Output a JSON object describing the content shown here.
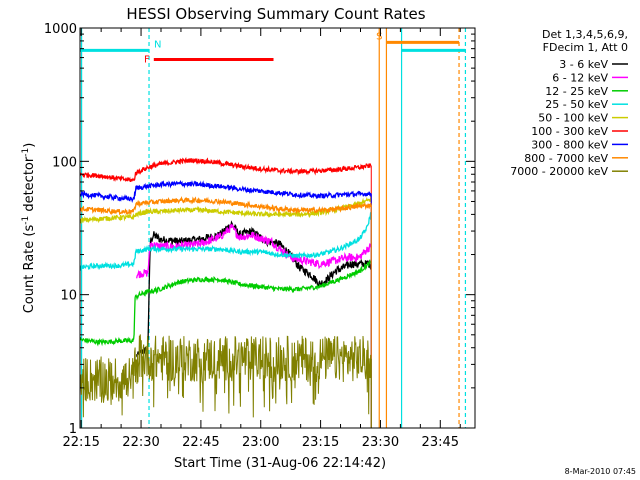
{
  "chart_data": {
    "type": "line",
    "title": "HESSI Observing Summary Count Rates",
    "xlabel": "Start Time (31-Aug-06 22:14:42)",
    "ylabel_main": "Count Rate (s",
    "ylabel_sup1": "-1",
    "ylabel_mid": " detector",
    "ylabel_sup2": "-1",
    "ylabel_end": ")",
    "x_unit": "minutes after 22:14:42",
    "xlim": [
      0,
      99
    ],
    "ylim": [
      1,
      1000
    ],
    "yscale": "log",
    "x_ticks": [
      {
        "t": 0.3,
        "label": "22:15"
      },
      {
        "t": 15.3,
        "label": "22:30"
      },
      {
        "t": 30.3,
        "label": "22:45"
      },
      {
        "t": 45.3,
        "label": "23:00"
      },
      {
        "t": 60.3,
        "label": "23:15"
      },
      {
        "t": 75.3,
        "label": "23:30"
      },
      {
        "t": 90.3,
        "label": "23:45"
      }
    ],
    "y_ticks": [
      {
        "v": 1,
        "label": "1"
      },
      {
        "v": 10,
        "label": "10"
      },
      {
        "v": 100,
        "label": "100"
      },
      {
        "v": 1000,
        "label": "1000"
      }
    ],
    "legend_header": [
      "Det 1,3,4,5,6,9,",
      "FDecim 1, Att 0"
    ],
    "legend_position": "right",
    "timestamp": "8-Mar-2010 07:45",
    "series": [
      {
        "name": "3 - 6 keV",
        "color": "#000000",
        "points": [
          [
            14.2,
            3.5
          ],
          [
            14.6,
            3.5
          ],
          [
            15.5,
            3.7
          ],
          [
            16.0,
            3.8
          ],
          [
            17.0,
            3.8
          ],
          [
            17.6,
            25
          ],
          [
            18.5,
            28
          ],
          [
            20,
            26
          ],
          [
            25,
            25
          ],
          [
            30,
            26
          ],
          [
            35,
            28
          ],
          [
            38,
            34
          ],
          [
            40,
            28
          ],
          [
            43,
            30
          ],
          [
            45,
            27
          ],
          [
            47,
            25
          ],
          [
            50,
            24
          ],
          [
            52,
            21
          ],
          [
            55,
            16
          ],
          [
            58,
            14
          ],
          [
            60,
            12
          ],
          [
            62,
            13
          ],
          [
            64,
            15
          ],
          [
            66,
            16
          ],
          [
            68,
            17
          ],
          [
            70,
            17
          ],
          [
            72,
            17
          ],
          [
            73,
            17
          ]
        ]
      },
      {
        "name": "6 - 12 keV",
        "color": "#ff00ff",
        "points": [
          [
            14.2,
            14
          ],
          [
            15.5,
            14.5
          ],
          [
            17.0,
            14.5
          ],
          [
            17.6,
            24
          ],
          [
            20,
            23
          ],
          [
            25,
            23
          ],
          [
            30,
            24
          ],
          [
            35,
            27
          ],
          [
            38,
            32
          ],
          [
            40,
            27
          ],
          [
            43,
            28
          ],
          [
            46,
            26
          ],
          [
            48,
            25
          ],
          [
            50,
            22
          ],
          [
            53,
            19
          ],
          [
            56,
            18
          ],
          [
            60,
            17
          ],
          [
            64,
            18
          ],
          [
            67,
            19
          ],
          [
            70,
            19
          ],
          [
            72,
            22
          ],
          [
            73,
            23
          ]
        ]
      },
      {
        "name": "12 - 25 keV",
        "color": "#00cc00",
        "points": [
          [
            0,
            4.6
          ],
          [
            5,
            4.4
          ],
          [
            10,
            4.5
          ],
          [
            13.5,
            4.5
          ],
          [
            13.8,
            9.5
          ],
          [
            15,
            10
          ],
          [
            17,
            10.5
          ],
          [
            20,
            11
          ],
          [
            25,
            12.5
          ],
          [
            30,
            13
          ],
          [
            35,
            13
          ],
          [
            40,
            12
          ],
          [
            45,
            11.5
          ],
          [
            50,
            11
          ],
          [
            55,
            11
          ],
          [
            60,
            11.5
          ],
          [
            65,
            13
          ],
          [
            70,
            15
          ],
          [
            73,
            17.5
          ]
        ]
      },
      {
        "name": "25 - 50 keV",
        "color": "#00e0e0",
        "points": [
          [
            0,
            16
          ],
          [
            5,
            16.5
          ],
          [
            10,
            16.5
          ],
          [
            13.5,
            17
          ],
          [
            14,
            21
          ],
          [
            17,
            22
          ],
          [
            20,
            22
          ],
          [
            25,
            22
          ],
          [
            30,
            22
          ],
          [
            35,
            22
          ],
          [
            40,
            21
          ],
          [
            45,
            21
          ],
          [
            50,
            20
          ],
          [
            55,
            19.5
          ],
          [
            60,
            20
          ],
          [
            65,
            22
          ],
          [
            70,
            26
          ],
          [
            72,
            32
          ],
          [
            73,
            42
          ]
        ]
      },
      {
        "name": "50 - 100 keV",
        "color": "#cccc00",
        "points": [
          [
            0,
            36
          ],
          [
            5,
            37
          ],
          [
            10,
            38
          ],
          [
            13.5,
            38
          ],
          [
            14,
            40
          ],
          [
            17,
            42
          ],
          [
            20,
            42
          ],
          [
            25,
            43
          ],
          [
            30,
            43
          ],
          [
            35,
            42
          ],
          [
            40,
            41
          ],
          [
            45,
            40
          ],
          [
            50,
            40
          ],
          [
            55,
            40
          ],
          [
            60,
            41
          ],
          [
            65,
            44
          ],
          [
            70,
            48
          ],
          [
            73,
            52
          ]
        ]
      },
      {
        "name": "100 - 300 keV",
        "color": "#ff0000",
        "points": [
          [
            0,
            80
          ],
          [
            5,
            78
          ],
          [
            10,
            74
          ],
          [
            13.5,
            72
          ],
          [
            14,
            82
          ],
          [
            17,
            90
          ],
          [
            20,
            95
          ],
          [
            25,
            100
          ],
          [
            28,
            102
          ],
          [
            32,
            100
          ],
          [
            36,
            96
          ],
          [
            40,
            92
          ],
          [
            45,
            88
          ],
          [
            50,
            85
          ],
          [
            55,
            84
          ],
          [
            60,
            85
          ],
          [
            65,
            87
          ],
          [
            70,
            90
          ],
          [
            73,
            93
          ]
        ]
      },
      {
        "name": "300 - 800 keV",
        "color": "#0000ff",
        "points": [
          [
            0,
            57
          ],
          [
            5,
            55
          ],
          [
            10,
            53
          ],
          [
            13.5,
            52
          ],
          [
            14,
            63
          ],
          [
            17,
            65
          ],
          [
            20,
            67
          ],
          [
            25,
            68
          ],
          [
            30,
            67
          ],
          [
            35,
            65
          ],
          [
            40,
            62
          ],
          [
            45,
            60
          ],
          [
            50,
            58
          ],
          [
            55,
            56
          ],
          [
            60,
            55
          ],
          [
            65,
            56
          ],
          [
            70,
            57
          ],
          [
            73,
            57
          ]
        ]
      },
      {
        "name": "800 - 7000 keV",
        "color": "#ff8800",
        "points": [
          [
            0,
            44
          ],
          [
            5,
            43
          ],
          [
            10,
            42
          ],
          [
            13.5,
            42
          ],
          [
            14,
            48
          ],
          [
            17,
            49
          ],
          [
            20,
            50
          ],
          [
            25,
            51
          ],
          [
            30,
            51
          ],
          [
            35,
            50
          ],
          [
            40,
            48
          ],
          [
            45,
            46
          ],
          [
            50,
            44
          ],
          [
            55,
            43
          ],
          [
            60,
            43
          ],
          [
            65,
            44
          ],
          [
            70,
            46
          ],
          [
            73,
            47
          ]
        ]
      },
      {
        "name": "7000 - 20000 keV",
        "color": "#808000",
        "points": [
          [
            0,
            2.3
          ],
          [
            5,
            2.3
          ],
          [
            10,
            2.3
          ],
          [
            13.5,
            2.3
          ],
          [
            14,
            3.5
          ],
          [
            20,
            3.3
          ],
          [
            25,
            3.3
          ],
          [
            30,
            3.3
          ],
          [
            35,
            3.3
          ],
          [
            40,
            3.3
          ],
          [
            45,
            3.3
          ],
          [
            50,
            3.3
          ],
          [
            55,
            3.3
          ],
          [
            60,
            3.3
          ],
          [
            65,
            3.3
          ],
          [
            70,
            3.3
          ],
          [
            73,
            3.3
          ]
        ]
      }
    ],
    "annotations": [
      {
        "label": "N",
        "color": "#00e0e0",
        "t0": 0,
        "t1": 17.3,
        "y": 680
      },
      {
        "label": "F",
        "color": "#ff0000",
        "t0": 18.5,
        "t1": 48.5,
        "y": 580
      },
      {
        "label": "S",
        "color": "#ff8800",
        "t0": 76.8,
        "t1": 95.0,
        "y": 780
      },
      {
        "label": "",
        "color": "#00e0e0",
        "t0": 80.6,
        "t1": 96.6,
        "y": 680
      }
    ],
    "vlines": [
      {
        "t": 0.4,
        "color": "#00e0e0",
        "style": "solid"
      },
      {
        "t": 17.3,
        "color": "#00e0e0",
        "style": "dashed"
      },
      {
        "t": 75.0,
        "color": "#ff8800",
        "style": "solid"
      },
      {
        "t": 76.8,
        "color": "#ff8800",
        "style": "solid"
      },
      {
        "t": 80.6,
        "color": "#00e0e0",
        "style": "solid"
      },
      {
        "t": 95.0,
        "color": "#ff8800",
        "style": "dashed"
      },
      {
        "t": 96.6,
        "color": "#00e0e0",
        "style": "dashed"
      }
    ]
  }
}
